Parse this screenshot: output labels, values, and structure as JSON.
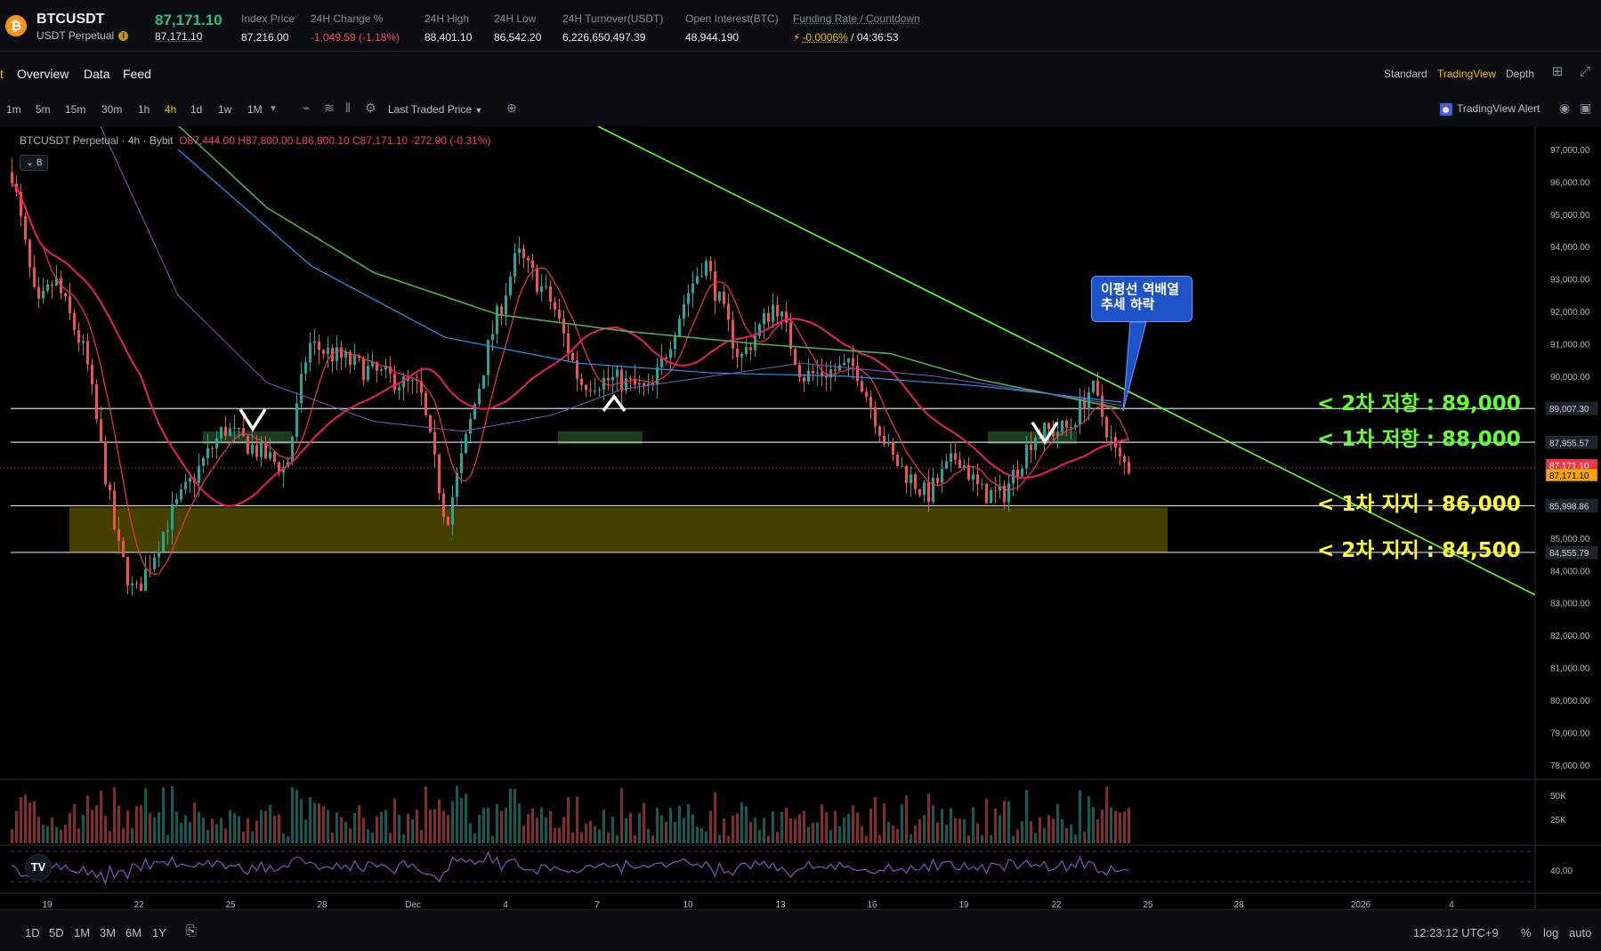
{
  "ticker": {
    "symbol": "BTCUSDT",
    "subtitle": "USDT Perpetual",
    "coin_glyph": "₿",
    "last_price": "87,171.10",
    "mark_price": "87,171.10",
    "stats": [
      {
        "label": "Index Price",
        "value": "87,216.00"
      },
      {
        "label": "24H Change %",
        "value": "-1,049.59 (-1.18%)"
      },
      {
        "label": "24H High",
        "value": "88,401.10"
      },
      {
        "label": "24H Low",
        "value": "86,542.20"
      },
      {
        "label": "24H Turnover(USDT)",
        "value": "6,226,650,497.39"
      },
      {
        "label": "Open Interest(BTC)",
        "value": "48,944.190"
      }
    ],
    "funding": {
      "label": "Funding Rate / Countdown",
      "rate": "-0.0006%",
      "countdown": "/ 04:36:53"
    }
  },
  "tabs": {
    "active_fragment": "t",
    "items": [
      "Overview",
      "Data",
      "Feed"
    ]
  },
  "views": [
    "Standard",
    "TradingView",
    "Depth"
  ],
  "intervals": [
    "1m",
    "5m",
    "15m",
    "30m",
    "1h",
    "4h",
    "1d",
    "1w",
    "1M"
  ],
  "active_interval": "4h",
  "price_source": "Last Traded Price",
  "tv_alert": "TradingView Alert",
  "chart": {
    "legend_symbol": "BTCUSDT Perpetual · 4h · Bybit",
    "legend_ohlc": "O87,444.00 H87,800.00 L86,800.10 C87,171.10 -272.90 (-0.31%)",
    "indicator_badge": "8",
    "price_axis": [
      "97,000.00",
      "96,000.00",
      "95,000.00",
      "94,000.00",
      "93,000.00",
      "92,000.00",
      "91,000.00",
      "90,000.00",
      "89,000.00",
      "88,000.00",
      "87,000.00",
      "86,000.00",
      "85,000.00",
      "84,000.00",
      "83,000.00",
      "82,000.00",
      "81,000.00",
      "80,000.00",
      "79,000.00",
      "78,000.00"
    ],
    "price_tags": [
      {
        "text": "89,007.30",
        "color": "#d1d4dc",
        "bg": "#1e222d"
      },
      {
        "text": "87,955.57",
        "color": "#d1d4dc",
        "bg": "#1e222d"
      },
      {
        "text": "87,171.10",
        "color": "#ffffff",
        "bg": "#f23645"
      },
      {
        "text": "87,171.10",
        "color": "#000000",
        "bg": "#f7a600"
      },
      {
        "text": "85,998.86",
        "color": "#d1d4dc",
        "bg": "#1e222d"
      },
      {
        "text": "84,555.79",
        "color": "#d1d4dc",
        "bg": "#1e222d"
      }
    ],
    "volume_axis": [
      "50K",
      "25K"
    ],
    "rsi_axis": [
      "40.00"
    ],
    "time_axis": [
      "19",
      "22",
      "25",
      "28",
      "Dec",
      "4",
      "7",
      "10",
      "13",
      "16",
      "19",
      "22",
      "25",
      "28",
      "2026",
      "4"
    ],
    "annotations": {
      "resistance_2": "< 2차 저항 : 89,000",
      "resistance_1": "< 1차 저항 : 88,000",
      "support_1": "< 1차 지지 : 86,000",
      "support_2": "< 2차 지지 : 84,500",
      "callout_line1": "이평선 역배열",
      "callout_line2": "추세 하락"
    },
    "colors": {
      "up": "#26a69a",
      "down": "#ef5350",
      "ma_fast": "#f23645",
      "ma_mid": "#e91e63",
      "ma_slow": "#4caf50",
      "ma_long": "#2196f3",
      "trendline": "#66ff33",
      "zone": "#5a5500"
    }
  },
  "bottom": {
    "ranges": [
      "1D",
      "5D",
      "1M",
      "3M",
      "6M",
      "1Y"
    ],
    "clock": "12:23:12 UTC+9",
    "options": [
      "%",
      "log",
      "auto"
    ]
  }
}
